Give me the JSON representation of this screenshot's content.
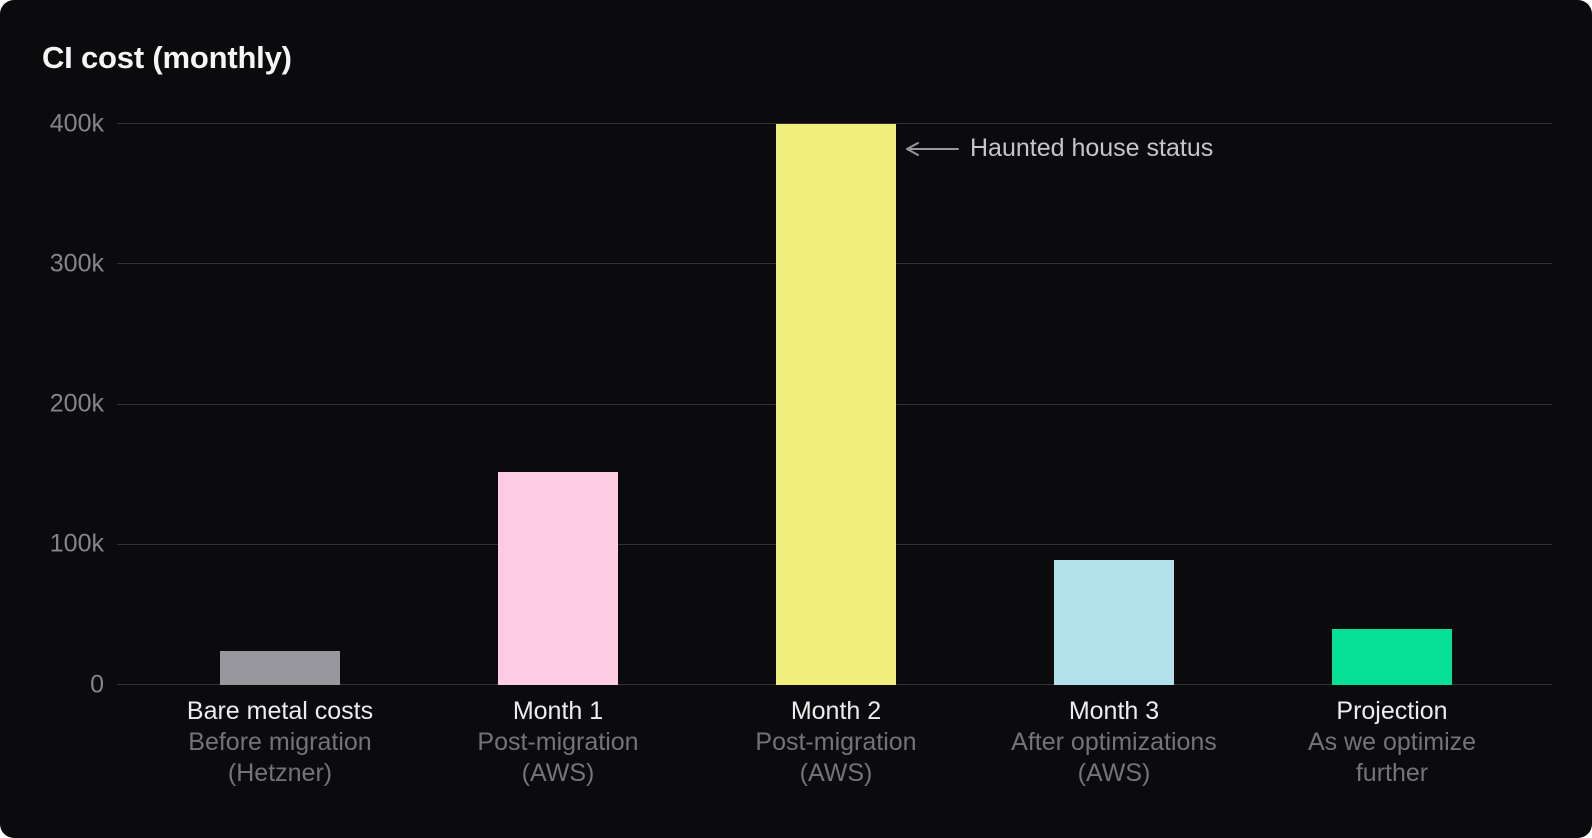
{
  "chart_data": {
    "type": "bar",
    "title": "CI cost (monthly)",
    "categories": [
      "Bare metal costs",
      "Month 1",
      "Month 2",
      "Month 3",
      "Projection"
    ],
    "category_sublabel_lines": [
      [
        "Before migration",
        "(Hetzner)"
      ],
      [
        "Post-migration",
        "(AWS)"
      ],
      [
        "Post-migration",
        "(AWS)"
      ],
      [
        "After optimizations",
        "(AWS)"
      ],
      [
        "As we optimize",
        "further"
      ]
    ],
    "values": [
      24000,
      152000,
      400000,
      89000,
      40000
    ],
    "bar_colors": [
      "#97979d",
      "#fecde4",
      "#f0ee7d",
      "#b3e1eb",
      "#05e096"
    ],
    "xlabel": "",
    "ylabel": "",
    "ylim": [
      0,
      400000
    ],
    "yticks": [
      0,
      100000,
      200000,
      300000,
      400000
    ],
    "ytick_labels": [
      "0",
      "100k",
      "200k",
      "300k",
      "400k"
    ],
    "grid": "horizontal",
    "legend": "none",
    "annotation": {
      "text": "Haunted house status",
      "arrow_direction": "left",
      "points_to": "Month 2"
    }
  },
  "colors": {
    "panel_bg": "#0b0b0d",
    "title": "#f5f5f6",
    "grid_line": "#323236",
    "tick_label": "#84848a",
    "category_label": "#ededef",
    "category_sublabel": "#737379",
    "annotation_text": "#c6c6ca",
    "annotation_arrow": "#97979d"
  }
}
